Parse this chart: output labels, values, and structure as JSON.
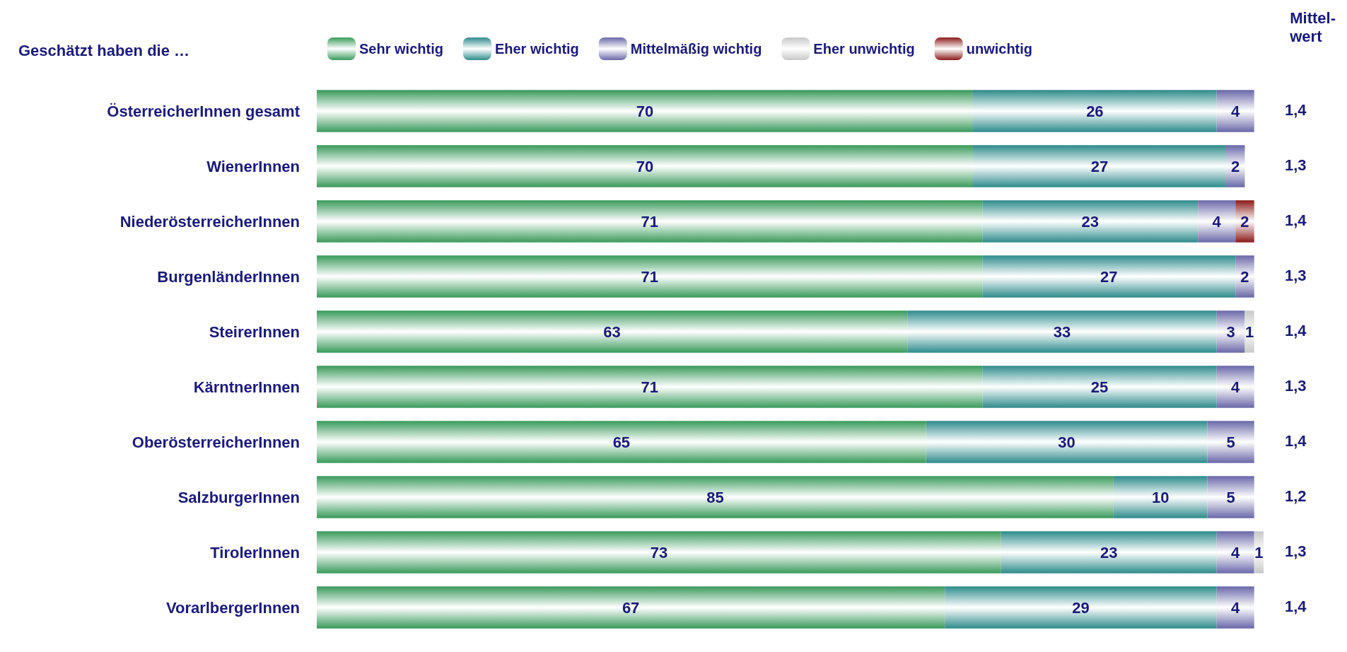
{
  "chart_data": {
    "type": "bar",
    "orientation": "horizontal",
    "stacked": true,
    "data_labels": true,
    "legend": "top",
    "legend_title": "Geschätzt haben die …",
    "categories": [
      "ÖsterreicherInnen gesamt",
      "WienerInnen",
      "NiederösterreicherInnen",
      "BurgenländerInnen",
      "SteirerInnen",
      "KärntnerInnen",
      "OberösterreicherInnen",
      "SalzburgerInnen",
      "TirolerInnen",
      "VorarlbergerInnen"
    ],
    "series": [
      {
        "name": "Sehr wichtig",
        "color": "#3a9a5c",
        "values": [
          70,
          70,
          71,
          71,
          63,
          71,
          65,
          85,
          73,
          67
        ]
      },
      {
        "name": "Eher wichtig",
        "color": "#2e8b8b",
        "values": [
          26,
          27,
          23,
          27,
          33,
          25,
          30,
          10,
          23,
          29
        ]
      },
      {
        "name": "Mittelmäßig wichtig",
        "color": "#6a68a8",
        "values": [
          4,
          2,
          4,
          2,
          3,
          4,
          5,
          5,
          4,
          4
        ]
      },
      {
        "name": "Eher unwichtig",
        "color": "#c8c8c8",
        "values": [
          null,
          null,
          null,
          null,
          1,
          null,
          null,
          null,
          1,
          null
        ]
      },
      {
        "name": "unwichtig",
        "color": "#8b1a1a",
        "values": [
          null,
          null,
          2,
          null,
          null,
          null,
          null,
          null,
          null,
          null
        ]
      }
    ],
    "annotations": [
      "Mittel-\nwert",
      "1,4",
      "1,3",
      "1,4",
      "1,3",
      "1,4",
      "1,3",
      "1,4",
      "1,2",
      "1,3",
      "1,4"
    ]
  }
}
